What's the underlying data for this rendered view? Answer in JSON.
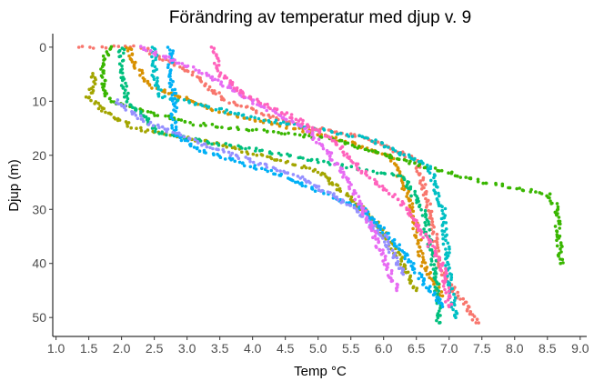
{
  "chart_data": {
    "type": "scatter",
    "title": "Förändring av temperatur med djup v. 9",
    "xlabel": "Temp °C",
    "ylabel": "Djup (m)",
    "xlim": [
      0.95,
      9.1
    ],
    "ylim": [
      53.5,
      -2.5
    ],
    "y_reversed": true,
    "grid": false,
    "legend": "none",
    "x_ticks": [
      "1.0",
      "1.5",
      "2.0",
      "2.5",
      "3.0",
      "3.5",
      "4.0",
      "4.5",
      "5.0",
      "5.5",
      "6.0",
      "6.5",
      "7.0",
      "7.5",
      "8.0",
      "8.5",
      "9.0"
    ],
    "x_tick_values": [
      1.0,
      1.5,
      2.0,
      2.5,
      3.0,
      3.5,
      4.0,
      4.5,
      5.0,
      5.5,
      6.0,
      6.5,
      7.0,
      7.5,
      8.0,
      8.5,
      9.0
    ],
    "y_ticks": [
      "0",
      "10",
      "20",
      "30",
      "40",
      "50"
    ],
    "y_tick_values": [
      0,
      10,
      20,
      30,
      40,
      50
    ],
    "series": [
      {
        "color": "#F8766D",
        "profile": [
          [
            1.35,
            0
          ],
          [
            2.3,
            0
          ],
          [
            3.1,
            5
          ],
          [
            3.6,
            10
          ],
          [
            4.6,
            14
          ],
          [
            5.8,
            17
          ],
          [
            6.5,
            21
          ],
          [
            6.7,
            30
          ],
          [
            6.9,
            42
          ],
          [
            7.45,
            51
          ]
        ]
      },
      {
        "color": "#D89000",
        "profile": [
          [
            2.1,
            0
          ],
          [
            2.2,
            3
          ],
          [
            2.4,
            7
          ],
          [
            3.5,
            12
          ],
          [
            5.0,
            16
          ],
          [
            6.1,
            20
          ],
          [
            6.4,
            28
          ],
          [
            6.6,
            40
          ],
          [
            6.9,
            46
          ]
        ]
      },
      {
        "color": "#A3A500",
        "profile": [
          [
            1.6,
            5
          ],
          [
            1.5,
            9
          ],
          [
            1.75,
            12
          ],
          [
            2.2,
            15
          ],
          [
            3.5,
            18
          ],
          [
            5.0,
            23
          ],
          [
            5.8,
            31
          ],
          [
            6.2,
            38
          ],
          [
            6.5,
            45
          ]
        ]
      },
      {
        "color": "#39B600",
        "profile": [
          [
            1.8,
            0
          ],
          [
            1.7,
            5
          ],
          [
            1.8,
            10
          ],
          [
            3.0,
            14
          ],
          [
            5.2,
            17
          ],
          [
            6.6,
            22
          ],
          [
            7.5,
            25
          ],
          [
            8.5,
            27
          ],
          [
            8.65,
            30
          ],
          [
            8.7,
            40
          ]
        ]
      },
      {
        "color": "#00BF7D",
        "profile": [
          [
            2.0,
            0
          ],
          [
            2.0,
            5
          ],
          [
            2.1,
            10
          ],
          [
            2.6,
            16
          ],
          [
            4.5,
            20
          ],
          [
            6.3,
            24
          ],
          [
            6.6,
            30
          ],
          [
            6.8,
            42
          ],
          [
            6.85,
            51
          ]
        ]
      },
      {
        "color": "#00BFC4",
        "profile": [
          [
            2.5,
            0
          ],
          [
            2.5,
            5
          ],
          [
            2.6,
            9
          ],
          [
            4.0,
            13
          ],
          [
            5.8,
            17
          ],
          [
            6.7,
            22
          ],
          [
            6.9,
            30
          ],
          [
            7.0,
            42
          ],
          [
            7.1,
            50
          ]
        ]
      },
      {
        "color": "#00B0F6",
        "profile": [
          [
            2.75,
            0
          ],
          [
            2.75,
            5
          ],
          [
            2.8,
            10
          ],
          [
            2.8,
            16
          ],
          [
            3.2,
            19
          ],
          [
            4.5,
            24
          ],
          [
            5.7,
            30
          ],
          [
            6.3,
            38
          ],
          [
            6.9,
            48
          ]
        ]
      },
      {
        "color": "#9590FF",
        "profile": [
          [
            1.9,
            10
          ],
          [
            2.4,
            14
          ],
          [
            3.5,
            19
          ],
          [
            4.7,
            24
          ],
          [
            5.6,
            30
          ],
          [
            6.0,
            35
          ],
          [
            6.3,
            42
          ]
        ]
      },
      {
        "color": "#E76BF3",
        "profile": [
          [
            2.3,
            0
          ],
          [
            3.3,
            5
          ],
          [
            4.0,
            10
          ],
          [
            4.8,
            15
          ],
          [
            5.2,
            20
          ],
          [
            5.6,
            28
          ],
          [
            5.9,
            36
          ],
          [
            6.1,
            42
          ],
          [
            6.2,
            45
          ]
        ]
      },
      {
        "color": "#FF62BC",
        "profile": [
          [
            3.4,
            0
          ],
          [
            3.5,
            5
          ],
          [
            3.9,
            9
          ],
          [
            4.8,
            14
          ],
          [
            5.3,
            18
          ],
          [
            5.7,
            23
          ],
          [
            6.3,
            29
          ],
          [
            6.9,
            40
          ],
          [
            7.0,
            48
          ]
        ]
      }
    ]
  }
}
